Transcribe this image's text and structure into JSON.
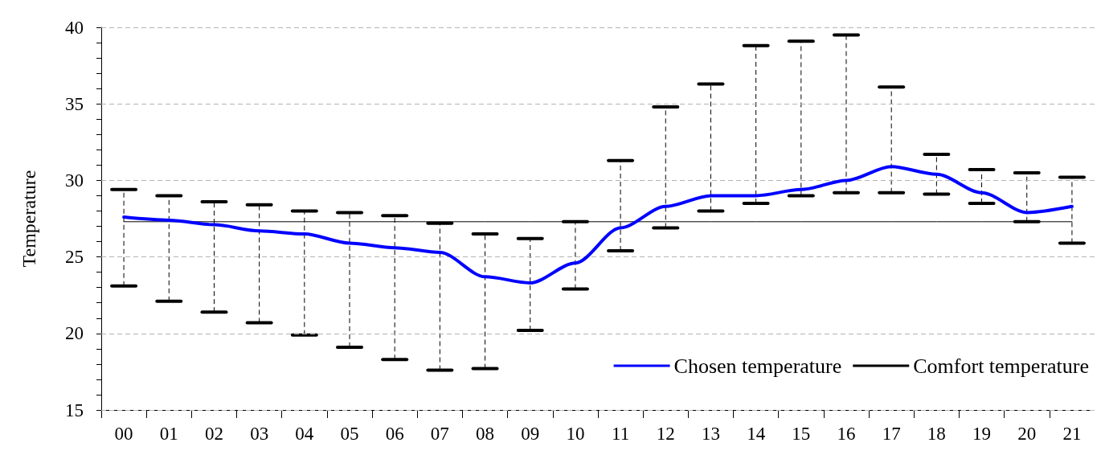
{
  "chart_data": {
    "type": "line",
    "ylabel": "Temperature",
    "categories": [
      "00",
      "01",
      "02",
      "03",
      "04",
      "05",
      "06",
      "07",
      "08",
      "09",
      "10",
      "11",
      "12",
      "13",
      "14",
      "15",
      "16",
      "17",
      "18",
      "19",
      "20",
      "21"
    ],
    "ylim": [
      15,
      40
    ],
    "yticks": [
      15,
      {
        "value": 16,
        "label": null
      },
      {
        "value": 17,
        "label": null
      },
      {
        "value": 18,
        "label": null
      },
      {
        "value": 19,
        "label": null
      },
      20,
      {
        "value": 21,
        "label": null
      },
      {
        "value": 22,
        "label": null
      },
      {
        "value": 23,
        "label": null
      },
      {
        "value": 24,
        "label": null
      },
      25,
      {
        "value": 26,
        "label": null
      },
      {
        "value": 27,
        "label": null
      },
      {
        "value": 28,
        "label": null
      },
      {
        "value": 29,
        "label": null
      },
      30,
      {
        "value": 31,
        "label": null
      },
      {
        "value": 32,
        "label": null
      },
      {
        "value": 33,
        "label": null
      },
      {
        "value": 34,
        "label": null
      },
      35,
      {
        "value": 36,
        "label": null
      },
      {
        "value": 37,
        "label": null
      },
      {
        "value": 38,
        "label": null
      },
      {
        "value": 39,
        "label": null
      },
      40
    ],
    "grid": "y",
    "legend": "bottom right",
    "marker": "none",
    "series": [
      {
        "name": "Chosen temperature",
        "color": "#0000ff",
        "values": [
          27.6,
          27.4,
          27.1,
          26.7,
          26.5,
          25.9,
          25.6,
          25.3,
          23.7,
          23.3,
          24.6,
          26.9,
          28.3,
          29.0,
          29.0,
          29.4,
          30.0,
          30.9,
          30.4,
          29.2,
          27.9,
          28.3
        ],
        "errors": [
          [
            23.1,
            29.4
          ],
          [
            22.1,
            29.0
          ],
          [
            21.4,
            28.6
          ],
          [
            20.7,
            28.4
          ],
          [
            19.9,
            28.0
          ],
          [
            19.1,
            27.9
          ],
          [
            18.3,
            27.7
          ],
          [
            17.6,
            27.2
          ],
          [
            17.7,
            26.5
          ],
          [
            20.2,
            26.2
          ],
          [
            22.9,
            27.3
          ],
          [
            25.4,
            31.3
          ],
          [
            26.9,
            34.8
          ],
          [
            28.0,
            36.3
          ],
          [
            28.5,
            38.8
          ],
          [
            29.0,
            39.1
          ],
          [
            29.2,
            39.5
          ],
          [
            29.2,
            36.1
          ],
          [
            29.1,
            31.7
          ],
          [
            28.5,
            30.7
          ],
          [
            27.3,
            30.5
          ],
          [
            25.9,
            30.2
          ]
        ]
      },
      {
        "name": "Comfort temperature",
        "color": "#000000",
        "values": [
          27.3,
          27.3,
          27.3,
          27.3,
          27.3,
          27.3,
          27.3,
          27.3,
          27.3,
          27.3,
          27.3,
          27.3,
          27.3,
          27.3,
          27.3,
          27.3,
          27.3,
          27.3,
          27.3,
          27.3,
          27.3,
          27.3
        ]
      }
    ]
  }
}
